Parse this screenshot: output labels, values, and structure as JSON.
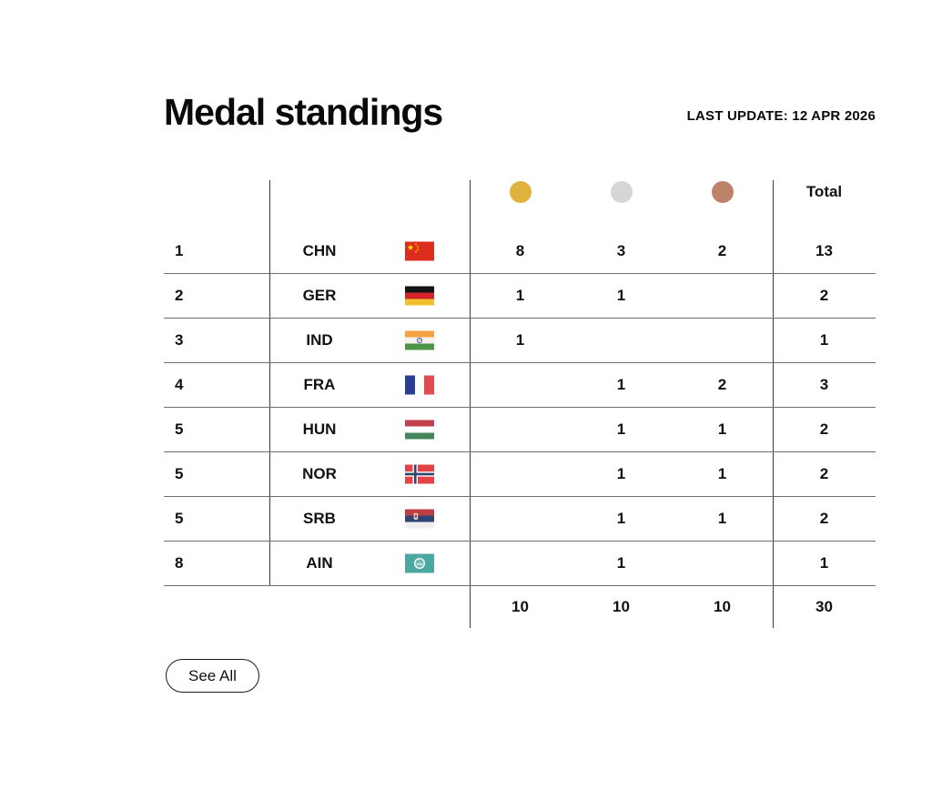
{
  "header": {
    "title": "Medal standings",
    "last_update": "LAST UPDATE: 12 APR 2026"
  },
  "table": {
    "total_header": "Total",
    "medal_colors": {
      "gold": "#DFB23C",
      "silver": "#D6D6D6",
      "bronze": "#BE8268"
    },
    "rows": [
      {
        "rank": "1",
        "country": "CHN",
        "flag": "chn",
        "gold": "8",
        "silver": "3",
        "bronze": "2",
        "total": "13"
      },
      {
        "rank": "2",
        "country": "GER",
        "flag": "ger",
        "gold": "1",
        "silver": "1",
        "bronze": "",
        "total": "2"
      },
      {
        "rank": "3",
        "country": "IND",
        "flag": "ind",
        "gold": "1",
        "silver": "",
        "bronze": "",
        "total": "1"
      },
      {
        "rank": "4",
        "country": "FRA",
        "flag": "fra",
        "gold": "",
        "silver": "1",
        "bronze": "2",
        "total": "3"
      },
      {
        "rank": "5",
        "country": "HUN",
        "flag": "hun",
        "gold": "",
        "silver": "1",
        "bronze": "1",
        "total": "2"
      },
      {
        "rank": "5",
        "country": "NOR",
        "flag": "nor",
        "gold": "",
        "silver": "1",
        "bronze": "1",
        "total": "2"
      },
      {
        "rank": "5",
        "country": "SRB",
        "flag": "srb",
        "gold": "",
        "silver": "1",
        "bronze": "1",
        "total": "2"
      },
      {
        "rank": "8",
        "country": "AIN",
        "flag": "ain",
        "gold": "",
        "silver": "1",
        "bronze": "",
        "total": "1"
      }
    ],
    "totals": {
      "gold": "10",
      "silver": "10",
      "bronze": "10",
      "total": "30"
    }
  },
  "see_all_label": "See All"
}
